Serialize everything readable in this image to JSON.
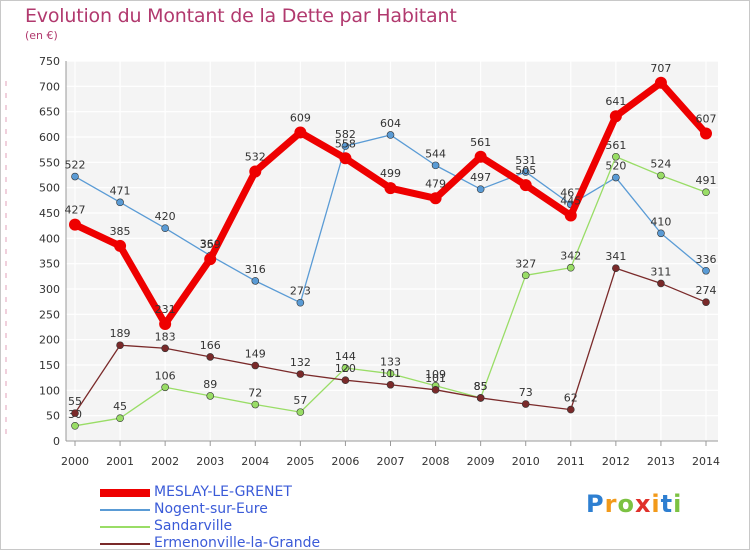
{
  "header": {
    "title": "Evolution du Montant de la Dette par Habitant",
    "unit": "(en €)"
  },
  "chart_data": {
    "type": "line",
    "title": "Evolution du Montant de la Dette par Habitant",
    "subtitle": "(en €)",
    "categories": [
      "2000",
      "2001",
      "2002",
      "2003",
      "2004",
      "2005",
      "2006",
      "2007",
      "2008",
      "2009",
      "2010",
      "2011",
      "2012",
      "2013",
      "2014"
    ],
    "ylim": [
      0,
      750
    ],
    "yticks": [
      0,
      50,
      100,
      150,
      200,
      250,
      300,
      350,
      400,
      450,
      500,
      550,
      600,
      650,
      700,
      750
    ],
    "grid": true,
    "legend_position": "bottom-left",
    "series": [
      {
        "name": "MESLAY-LE-GRENET",
        "color": "#ee0000",
        "emphasis": true,
        "values": [
          427,
          385,
          231,
          359,
          532,
          609,
          558,
          499,
          479,
          561,
          505,
          445,
          641,
          707,
          607
        ],
        "labels": [
          "427",
          "385",
          "231",
          "359",
          "532",
          "609",
          "558",
          "499",
          "479",
          "561",
          "505",
          "445",
          "641",
          "707",
          "607"
        ]
      },
      {
        "name": "Nogent-sur-Eure",
        "color": "#5a9bd5",
        "values": [
          522,
          471,
          420,
          366,
          316,
          273,
          582,
          604,
          544,
          497,
          531,
          467,
          520,
          410,
          336
        ],
        "labels": [
          "522",
          "471",
          "420",
          "366",
          "316",
          "273",
          "582",
          "604",
          "544",
          "497",
          "531",
          "467",
          "520",
          "410",
          "336"
        ]
      },
      {
        "name": "Sandarville",
        "color": "#99dd66",
        "values": [
          30,
          45,
          106,
          89,
          72,
          57,
          144,
          133,
          109,
          85,
          327,
          342,
          561,
          524,
          491
        ],
        "labels": [
          "30",
          "45",
          "106",
          "89",
          "72",
          "57",
          "144",
          "133",
          "109",
          "85",
          "327",
          "342",
          "561",
          "524",
          "491"
        ]
      },
      {
        "name": "Ermenonville-la-Grande",
        "color": "#7a2a2a",
        "values": [
          55,
          189,
          183,
          166,
          149,
          132,
          120,
          111,
          101,
          85,
          73,
          62,
          341,
          311,
          274
        ],
        "labels": [
          "55",
          "189",
          "183",
          "166",
          "149",
          "132",
          "120",
          "111",
          "101",
          "85",
          "73",
          "62",
          "341",
          "311",
          "274"
        ]
      }
    ]
  },
  "logo": {
    "letters": [
      "P",
      "r",
      "o",
      "x",
      "i",
      "t",
      "i"
    ],
    "colors": [
      "#2e7fd1",
      "#f29a1a",
      "#7cc242",
      "#e0302a",
      "#f29a1a",
      "#2e7fd1",
      "#7cc242"
    ]
  }
}
